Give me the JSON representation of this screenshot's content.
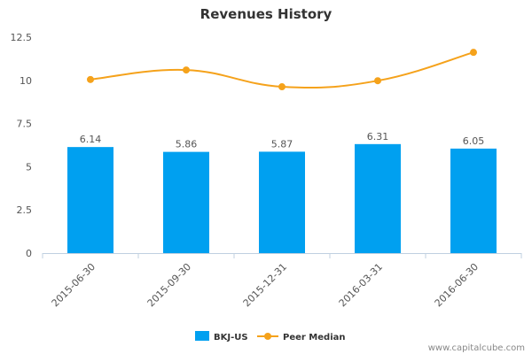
{
  "chart_data": {
    "type": "bar",
    "title": "Revenues History",
    "xlabel": "",
    "ylabel": "",
    "ylim": [
      0,
      12.5
    ],
    "yticks": [
      "0",
      "2.5",
      "5",
      "7.5",
      "10",
      "12.5"
    ],
    "categories": [
      "2015-06-30",
      "2015-09-30",
      "2015-12-31",
      "2016-03-31",
      "2016-06-30"
    ],
    "series": [
      {
        "name": "BKJ-US",
        "type": "bar",
        "color": "#00a0f0",
        "values": [
          6.14,
          5.86,
          5.87,
          6.31,
          6.05
        ],
        "labels": [
          "6.14",
          "5.86",
          "5.87",
          "6.31",
          "6.05"
        ]
      },
      {
        "name": "Peer Median",
        "type": "line",
        "color": "#f5a21b",
        "values": [
          10.05,
          10.6,
          9.63,
          9.98,
          11.62
        ]
      }
    ],
    "legend_position": "bottom-center",
    "grid": false
  },
  "watermark": "www.capitalcube.com"
}
